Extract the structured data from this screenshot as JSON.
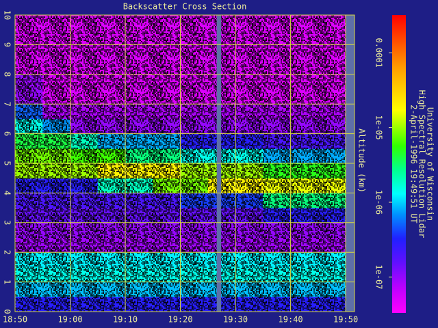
{
  "chart_data": {
    "type": "heatmap",
    "title": "Backscatter Cross Section",
    "ylabel": "Altitude (km)",
    "annotations": [
      "University of Wisconsin",
      "High Spectral Resolution Lidar",
      "2-April-1996 19:49:51 UT"
    ],
    "xlim": [
      1130,
      1191.6
    ],
    "xticks": [
      {
        "value": 1130,
        "label": "18:50"
      },
      {
        "value": 1140,
        "label": "19:00"
      },
      {
        "value": 1150,
        "label": "19:10"
      },
      {
        "value": 1160,
        "label": "19:20"
      },
      {
        "value": 1170,
        "label": "19:30"
      },
      {
        "value": 1180,
        "label": "19:40"
      },
      {
        "value": 1190,
        "label": "19:50"
      }
    ],
    "ylim": [
      0,
      10
    ],
    "yticks": [
      0,
      1,
      2,
      3,
      4,
      5,
      6,
      7,
      8,
      9,
      10
    ],
    "grid": true,
    "xbins": [
      1130,
      1135,
      1140,
      1145,
      1150,
      1155,
      1160,
      1165,
      1170,
      1175,
      1180,
      1185,
      1190
    ],
    "ybins": [
      0,
      0.5,
      1,
      1.5,
      2,
      2.5,
      3,
      3.5,
      4,
      4.5,
      5,
      5.5,
      6,
      6.5,
      7,
      7.5,
      8,
      8.5,
      9,
      9.5,
      10
    ],
    "z": [
      [
        3e-07,
        3e-07,
        3e-07,
        3e-07,
        3e-07,
        3e-07,
        3e-07,
        3e-07,
        3e-07,
        3e-07,
        3e-07,
        3e-07
      ],
      [
        9e-07,
        9e-07,
        9e-07,
        9e-07,
        9e-07,
        9e-07,
        9e-07,
        9e-07,
        9e-07,
        9e-07,
        9e-07,
        9e-07
      ],
      [
        1.5e-06,
        1.5e-06,
        1.5e-06,
        1.5e-06,
        1.5e-06,
        1.5e-06,
        1.5e-06,
        1.5e-06,
        1.5e-06,
        1.5e-06,
        1.5e-06,
        1.5e-06
      ],
      [
        1.2e-06,
        1.2e-06,
        1.2e-06,
        1.2e-06,
        1.2e-06,
        1.2e-06,
        1.2e-06,
        1.2e-06,
        1.2e-06,
        1.2e-06,
        1.2e-06,
        1.2e-06
      ],
      [
        9e-08,
        9e-08,
        9e-08,
        9e-08,
        9e-08,
        9e-08,
        9e-08,
        9e-08,
        9e-08,
        9e-08,
        9e-08,
        9e-08
      ],
      [
        1e-07,
        1e-07,
        1e-07,
        1e-07,
        1e-07,
        1e-07,
        1e-07,
        1e-07,
        1e-07,
        1e-07,
        1e-07,
        1e-07
      ],
      [
        1.5e-07,
        1.5e-07,
        1.5e-07,
        1.5e-07,
        1.5e-07,
        1.5e-07,
        1.5e-07,
        1.5e-07,
        1.5e-07,
        3e-07,
        3e-07,
        3e-07
      ],
      [
        2e-07,
        2e-07,
        2e-07,
        2e-07,
        2e-07,
        2e-07,
        4e-07,
        4e-07,
        4e-07,
        3e-06,
        3e-06,
        3e-06
      ],
      [
        3e-07,
        3e-07,
        3e-07,
        2e-06,
        2e-06,
        8e-06,
        8e-06,
        2e-05,
        2e-05,
        1.5e-05,
        1.5e-05,
        1.5e-05
      ],
      [
        1e-05,
        1e-05,
        1e-05,
        2e-05,
        2e-05,
        2e-05,
        1e-05,
        1e-05,
        1e-05,
        5e-06,
        5e-06,
        5e-06
      ],
      [
        8e-06,
        8e-06,
        6e-06,
        6e-06,
        3e-06,
        3e-06,
        1.5e-06,
        1.5e-06,
        1.5e-06,
        8e-07,
        8e-07,
        8e-07
      ],
      [
        4e-06,
        4e-06,
        2e-06,
        8e-07,
        8e-07,
        8e-07,
        3e-07,
        3e-07,
        3e-07,
        2e-07,
        2e-07,
        2e-07
      ],
      [
        1.5e-06,
        7e-07,
        1e-07,
        1e-07,
        1e-07,
        1e-07,
        1e-07,
        1e-07,
        1e-07,
        1e-07,
        1e-07,
        1e-07
      ],
      [
        5e-07,
        8e-08,
        8e-08,
        8e-08,
        8e-08,
        8e-08,
        8e-08,
        8e-08,
        8e-08,
        8e-08,
        8e-08,
        8e-08
      ],
      [
        1e-07,
        5e-08,
        5e-08,
        5e-08,
        5e-08,
        5e-08,
        5e-08,
        5e-08,
        5e-08,
        5e-08,
        5e-08,
        5e-08
      ],
      [
        1e-07,
        5e-08,
        5e-08,
        5e-08,
        5e-08,
        5e-08,
        5e-08,
        5e-08,
        5e-08,
        5e-08,
        5e-08,
        5e-08
      ],
      [
        5e-08,
        5e-08,
        5e-08,
        5e-08,
        5e-08,
        5e-08,
        5e-08,
        5e-08,
        5e-08,
        5e-08,
        5e-08,
        5e-08
      ],
      [
        5e-08,
        5e-08,
        5e-08,
        5e-08,
        5e-08,
        5e-08,
        5e-08,
        5e-08,
        5e-08,
        5e-08,
        5e-08,
        5e-08
      ],
      [
        5e-08,
        5e-08,
        5e-08,
        5e-08,
        5e-08,
        5e-08,
        5e-08,
        5e-08,
        5e-08,
        5e-08,
        5e-08,
        5e-08
      ],
      [
        5e-08,
        5e-08,
        5e-08,
        5e-08,
        5e-08,
        5e-08,
        5e-08,
        5e-08,
        5e-08,
        5e-08,
        5e-08,
        5e-08
      ]
    ],
    "gaps": [
      [
        1166.6,
        1167.4
      ],
      [
        1190,
        1191.6
      ]
    ],
    "colorbar": {
      "log": true,
      "clim": [
        3.3e-08,
        0.00032
      ],
      "ticks": [
        {
          "value": 1e-07,
          "label": "1e-07"
        },
        {
          "value": 1e-06,
          "label": "1e-06"
        },
        {
          "value": 1e-05,
          "label": "1e-05"
        },
        0.0001
      ]
    }
  }
}
